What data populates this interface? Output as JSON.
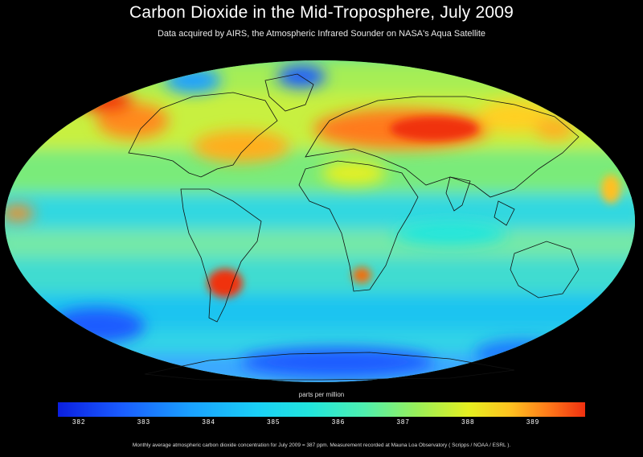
{
  "title": "Carbon Dioxide in the Mid-Troposphere, July 2009",
  "subtitle": "Data acquired by AIRS, the Atmospheric Infrared Sounder on NASA's Aqua Satellite",
  "colorbar": {
    "label": "parts per million",
    "ticks": [
      "382",
      "383",
      "384",
      "385",
      "386",
      "387",
      "388",
      "389"
    ]
  },
  "footnote": "Monthly average atmospheric carbon dioxide concentration for July 2009 = 387 ppm. Measurement recorded at Mauna Loa Observatory ( Scripps / NOAA / ESRL ).",
  "colors": {
    "low": "#0b1fe0",
    "mid": "#22e6dc",
    "high": "#f03010"
  }
}
